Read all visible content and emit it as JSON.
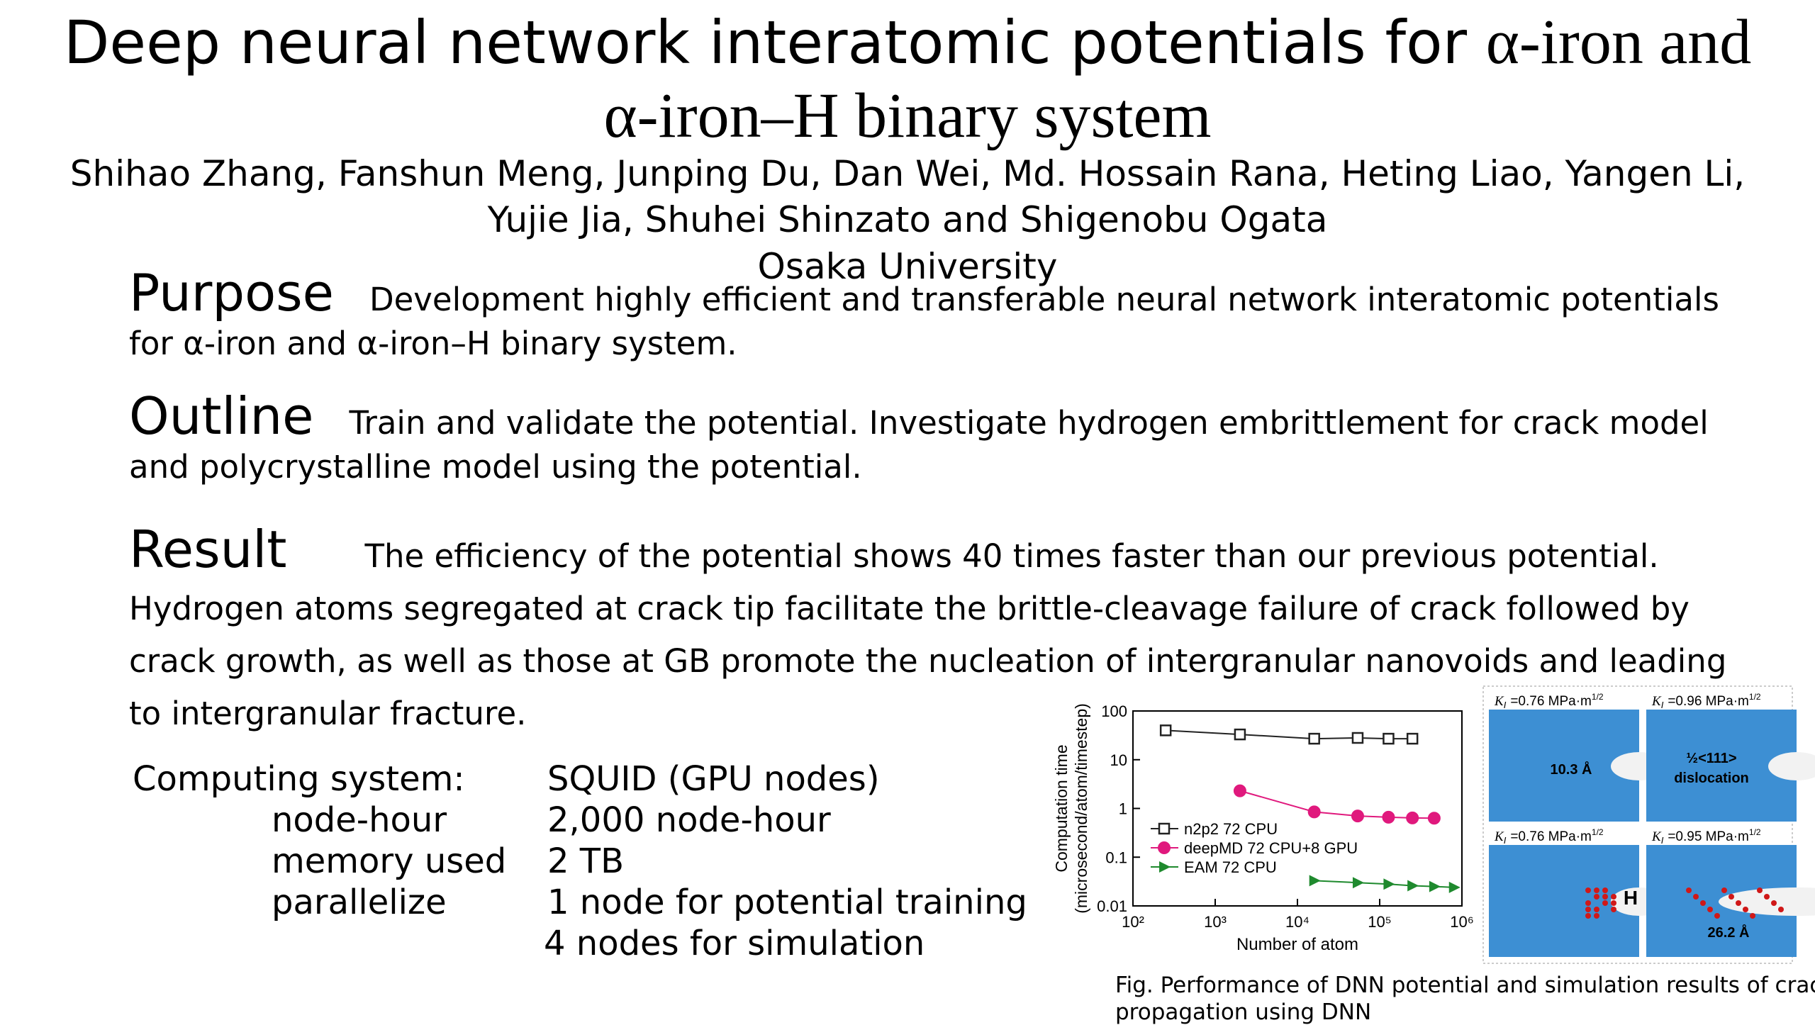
{
  "title": {
    "parts": [
      "Deep neural network interatomic potentials for",
      "α-iron and",
      "α-iron–H binary system"
    ]
  },
  "authors": [
    "Shihao Zhang, Fanshun Meng, Junping Du, Dan Wei, Md. Hossain Rana, Heting Liao, Yangen Li,",
    "Yujie Jia, Shuhei Shinzato and Shigenobu Ogata"
  ],
  "affiliation": "Osaka University",
  "sections": [
    {
      "heading": "Purpose",
      "text": "Development highly efficient and transferable neural network interatomic potentials for α-iron and α-iron–H binary system."
    },
    {
      "heading": "Outline",
      "text": "Train and validate the potential. Investigate hydrogen embrittlement for crack model and polycrystalline model using the potential."
    },
    {
      "heading": "Result",
      "text": "The efficiency of the potential shows 40 times faster than our previous potential. Hydrogen atoms segregated at crack tip facilitate the brittle-cleavage failure of crack followed by crack growth, as well as those at GB promote the nucleation of intergranular nanovoids and leading to intergranular fracture."
    }
  ],
  "computing": [
    {
      "label": "Computing system:",
      "values": [
        "SQUID (GPU nodes)"
      ]
    },
    {
      "label": "node-hour",
      "values": [
        "2,000 node-hour"
      ]
    },
    {
      "label": "memory used",
      "values": [
        "2 TB"
      ]
    },
    {
      "label": "parallelize",
      "values": [
        "1 node for potential training",
        "4 nodes for simulation"
      ]
    }
  ],
  "chart_data": {
    "type": "line",
    "xlabel": "Number of atom",
    "ylabel": [
      "Computation time",
      "(microsecond/atom/timestep)"
    ],
    "log": true,
    "xlim": [
      100,
      1000000
    ],
    "ylim": [
      0.01,
      100
    ],
    "xticks": [
      {
        "value": 100,
        "label": "10²"
      },
      {
        "value": 1000,
        "label": "10³"
      },
      {
        "value": 10000,
        "label": "10⁴"
      },
      {
        "value": 100000,
        "label": "10⁵"
      },
      {
        "value": 1000000,
        "label": "10⁶"
      }
    ],
    "yticks": [
      0.01,
      0.1,
      1,
      10,
      100
    ],
    "series": [
      {
        "name": "n2p2 72 CPU",
        "color": "#222222",
        "marker": "square",
        "x": [
          250,
          2000,
          16000,
          54000,
          128000,
          250000
        ],
        "values": [
          40,
          33,
          27,
          28,
          27,
          27
        ]
      },
      {
        "name": "deepMD 72 CPU+8 GPU",
        "color": "#e0197d",
        "marker": "circle",
        "x": [
          2000,
          16000,
          54000,
          128000,
          250000,
          460000
        ],
        "values": [
          2.3,
          0.85,
          0.7,
          0.66,
          0.64,
          0.63
        ]
      },
      {
        "name": "EAM 72 CPU",
        "color": "#1f8a2e",
        "marker": "triangle",
        "x": [
          16000,
          54000,
          128000,
          250000,
          460000,
          800000
        ],
        "values": [
          0.033,
          0.03,
          0.028,
          0.026,
          0.025,
          0.024
        ]
      }
    ]
  },
  "panels": [
    {
      "k": "K",
      "sub": "I",
      "value": "=0.76 MPa·m",
      "sup": "1/2",
      "notes": [
        "10.3 Å"
      ]
    },
    {
      "k": "K",
      "sub": "I",
      "value": "=0.96 MPa·m",
      "sup": "1/2",
      "notes": [
        "½<111>",
        "dislocation"
      ]
    },
    {
      "k": "K",
      "sub": "I",
      "value": "=0.76 MPa·m",
      "sup": "1/2",
      "notes": [
        "H"
      ]
    },
    {
      "k": "K",
      "sub": "I",
      "value": "=0.95 MPa·m",
      "sup": "1/2",
      "notes": [
        "26.2 Å"
      ]
    }
  ],
  "caption": [
    "Fig. Performance of DNN potential and simulation results of crack",
    "propagation using DNN"
  ]
}
